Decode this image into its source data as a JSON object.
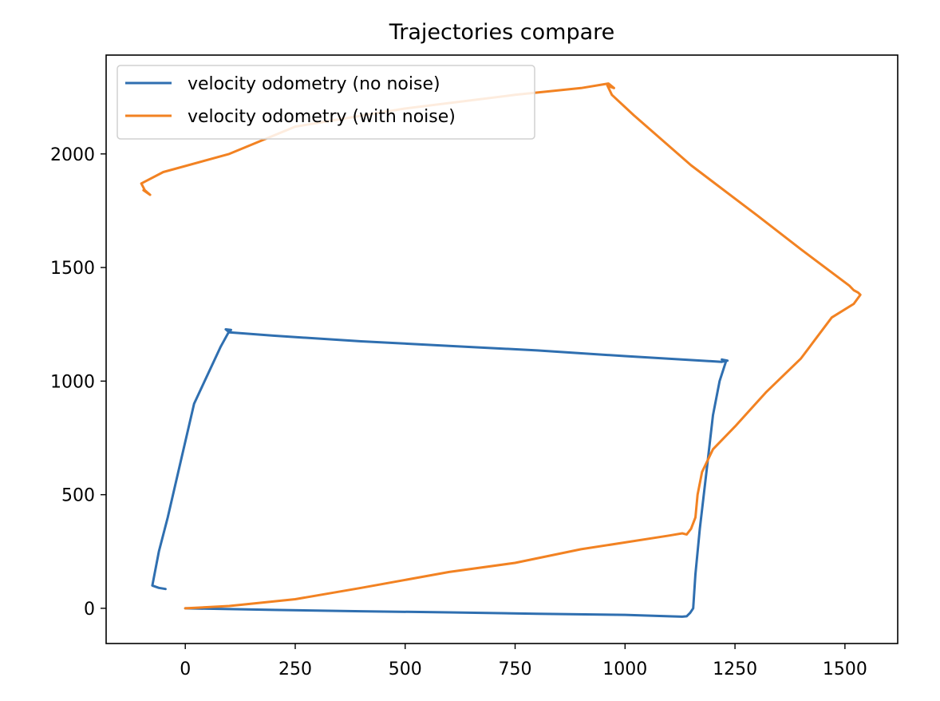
{
  "chart_data": {
    "type": "line",
    "title": "Trajectories compare",
    "xlabel": "",
    "ylabel": "",
    "xlim": [
      -180,
      1620
    ],
    "ylim": [
      -155,
      2435
    ],
    "xticks": [
      0,
      250,
      500,
      750,
      1000,
      1250,
      1500
    ],
    "yticks": [
      0,
      500,
      1000,
      1500,
      2000
    ],
    "grid": false,
    "legend_position": "upper-left",
    "series": [
      {
        "name": "velocity odometry (no noise)",
        "color": "#2f6fb0",
        "x": [
          0,
          200,
          400,
          600,
          800,
          1000,
          1100,
          1130,
          1140,
          1148,
          1155,
          1160,
          1170,
          1185,
          1200,
          1215,
          1230,
          1220,
          1233,
          1220,
          1000,
          800,
          600,
          400,
          200,
          100,
          92,
          104,
          100,
          80,
          20,
          -10,
          -40,
          -60,
          -75,
          -60,
          -45
        ],
        "y": [
          0,
          -7,
          -13,
          -18,
          -24,
          -29,
          -35,
          -37,
          -35,
          -20,
          0,
          150,
          350,
          600,
          850,
          1000,
          1090,
          1095,
          1090,
          1085,
          1110,
          1135,
          1155,
          1175,
          1200,
          1215,
          1228,
          1225,
          1220,
          1150,
          900,
          650,
          400,
          250,
          100,
          90,
          85
        ]
      },
      {
        "name": "velocity odometry (with noise)",
        "color": "#f28222",
        "x": [
          0,
          100,
          250,
          400,
          600,
          750,
          900,
          1000,
          1100,
          1130,
          1140,
          1150,
          1160,
          1165,
          1175,
          1200,
          1250,
          1320,
          1400,
          1470,
          1520,
          1535,
          1530,
          1520,
          1510,
          1400,
          1300,
          1150,
          1020,
          970,
          960,
          975,
          962,
          900,
          750,
          500,
          250,
          100,
          -50,
          -90,
          -100,
          -92,
          -80,
          -95
        ],
        "y": [
          0,
          10,
          40,
          90,
          160,
          200,
          260,
          290,
          320,
          330,
          325,
          350,
          400,
          500,
          600,
          700,
          800,
          950,
          1100,
          1280,
          1340,
          1380,
          1390,
          1400,
          1420,
          1580,
          1730,
          1950,
          2170,
          2260,
          2300,
          2290,
          2310,
          2290,
          2260,
          2200,
          2120,
          2000,
          1920,
          1880,
          1870,
          1840,
          1820,
          1840
        ]
      }
    ]
  }
}
